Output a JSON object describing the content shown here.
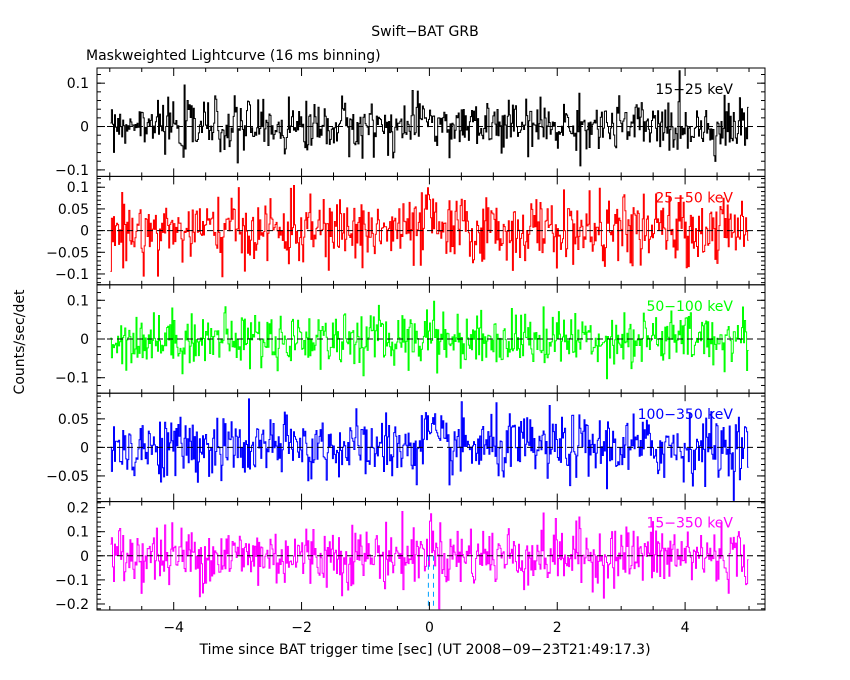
{
  "chart_data": {
    "type": "line",
    "title": "Swift−BAT GRB",
    "subtitle": "Maskweighted Lightcurve (16 ms binning)",
    "xlabel": "Time since BAT trigger time [sec] (UT 2008−09−23T21:49:17.3)",
    "ylabel": "Counts/sec/det",
    "xlim": [
      -5.2,
      5.25
    ],
    "x_ticks": [
      -4,
      -2,
      0,
      2,
      4
    ],
    "x_tick_labels": [
      "−4",
      "−2",
      "0",
      "2",
      "4"
    ],
    "series_x_range": [
      -4.99,
      4.99
    ],
    "bin_width_sec": 0.016,
    "trigger_marker_x": [
      -0.016,
      0.064
    ],
    "grid": false,
    "panels": [
      {
        "name": "15−25 keV",
        "color": "#000000",
        "ylim": [
          -0.115,
          0.135
        ],
        "y_ticks": [
          -0.1,
          0,
          0.1
        ],
        "y_tick_labels": [
          "−0.1",
          "0",
          "0.1"
        ],
        "noise_sigma": 0.03
      },
      {
        "name": "25−50 keV",
        "color": "#ff0000",
        "ylim": [
          -0.125,
          0.125
        ],
        "y_ticks": [
          -0.1,
          -0.05,
          0,
          0.05,
          0.1
        ],
        "y_tick_labels": [
          "−0.1",
          "−0.05",
          "0",
          "0.05",
          "0.1"
        ],
        "noise_sigma": 0.038
      },
      {
        "name": "50−100 keV",
        "color": "#00ff00",
        "ylim": [
          -0.14,
          0.14
        ],
        "y_ticks": [
          -0.1,
          0,
          0.1
        ],
        "y_tick_labels": [
          "−0.1",
          "0",
          "0.1"
        ],
        "noise_sigma": 0.035
      },
      {
        "name": "100−350 keV",
        "color": "#0000ff",
        "ylim": [
          -0.095,
          0.095
        ],
        "y_ticks": [
          -0.05,
          0,
          0.05
        ],
        "y_tick_labels": [
          "−0.05",
          "0",
          "0.05"
        ],
        "noise_sigma": 0.028
      },
      {
        "name": "15−350 keV",
        "color": "#ff00ff",
        "ylim": [
          -0.225,
          0.225
        ],
        "y_ticks": [
          -0.2,
          -0.1,
          0,
          0.1,
          0.2
        ],
        "y_tick_labels": [
          "−0.2",
          "−0.1",
          "0",
          "0.1",
          "0.2"
        ],
        "noise_sigma": 0.065
      }
    ]
  }
}
